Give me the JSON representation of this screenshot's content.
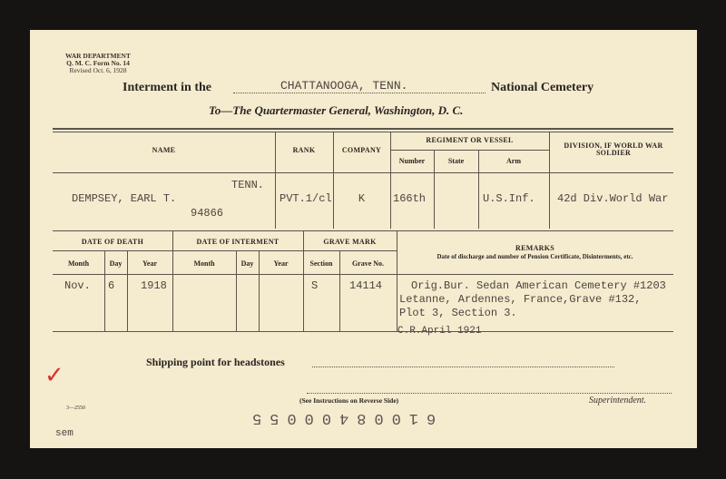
{
  "form": {
    "department": "WAR DEPARTMENT",
    "form_no": "Q. M. C. Form No. 14",
    "revised": "Revised Oct. 6, 1928",
    "title_prefix": "Interment in the",
    "cemetery": "CHATTANOOGA, TENN.",
    "title_suffix": "National Cemetery",
    "addressee": "To—The Quartermaster General, Washington, D. C.",
    "print_code": "3—2550",
    "initials": "sem",
    "instructions": "(See Instructions on Reverse Side)",
    "serial_number": "61008400055",
    "superintendent_label": "Superintendent.",
    "shipping_label": "Shipping point for headstones"
  },
  "table1": {
    "headers": {
      "name": "NAME",
      "rank": "RANK",
      "company": "COMPANY",
      "regiment": "REGIMENT OR VESSEL",
      "number": "Number",
      "state": "State",
      "arm": "Arm",
      "division": "DIVISION, IF WORLD WAR SOLDIER"
    },
    "row": {
      "name": "DEMPSEY, EARL T.",
      "state_note": "TENN.",
      "service_number": "94866",
      "rank": "PVT.1/cl",
      "company": "K",
      "number": "166th",
      "state": "",
      "arm": "U.S.Inf.",
      "division": "42d Div.World War"
    }
  },
  "table2": {
    "headers": {
      "date_of_death": "DATE OF DEATH",
      "date_of_interment": "DATE OF INTERMENT",
      "grave_mark": "GRAVE MARK",
      "remarks": "REMARKS",
      "remarks_sub": "Date of discharge and number of Pension Certificate, Disinterments, etc.",
      "month": "Month",
      "day": "Day",
      "year": "Year",
      "section": "Section",
      "grave_no": "Grave No."
    },
    "row": {
      "death_month": "Nov.",
      "death_day": "6",
      "death_year": "1918",
      "interment_month": "",
      "interment_day": "",
      "interment_year": "",
      "section": "S",
      "grave_no": "14114",
      "remarks": [
        "Orig.Bur. Sedan American Cemetery #1203",
        "Letanne, Ardennes, France,Grave #132,",
        "Plot 3, Section 3."
      ],
      "cr_note": "C.R.April 1921"
    }
  },
  "colors": {
    "card": "#f5ebcf",
    "ink": "#4a4540",
    "check": "#d9302a"
  }
}
